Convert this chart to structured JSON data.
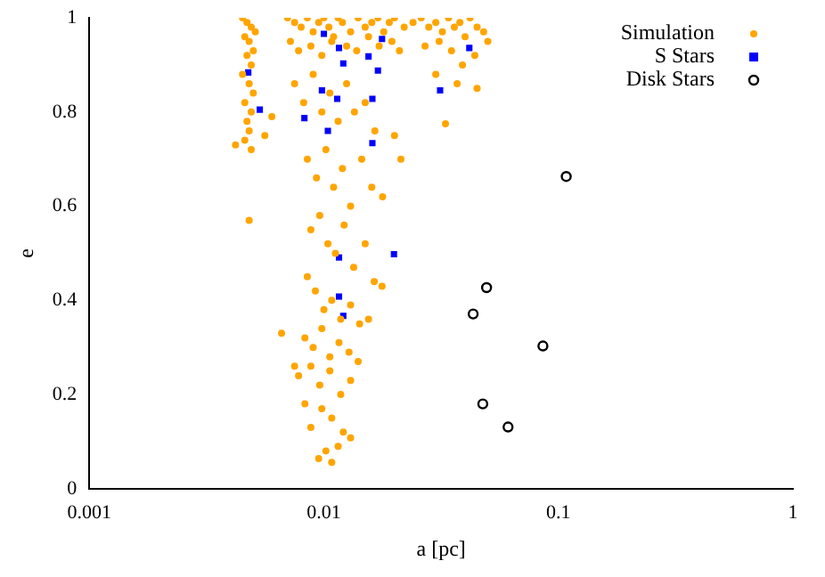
{
  "chart_data": {
    "type": "scatter",
    "xlabel": "a [pc]",
    "ylabel": "e",
    "log": "x",
    "grid": false,
    "legend": "top right",
    "xlim": [
      0.001,
      1
    ],
    "xticks": [
      0.001,
      0.01,
      0.1,
      1
    ],
    "ylim": [
      0,
      1
    ],
    "yticks": [
      0,
      0.2,
      0.4,
      0.6,
      0.8,
      1
    ],
    "series": [
      {
        "name": "Simulation",
        "color": "#ffa500",
        "marker": "circle",
        "x": [
          0.0045,
          0.0047,
          0.0049,
          0.0051,
          0.0046,
          0.0048,
          0.005,
          0.0047,
          0.0049,
          0.0045,
          0.0048,
          0.005,
          0.0046,
          0.0049,
          0.0047,
          0.0048,
          0.0046,
          0.0049,
          0.0042,
          0.0048,
          0.006,
          0.0056,
          0.007,
          0.0075,
          0.008,
          0.0085,
          0.009,
          0.0095,
          0.01,
          0.0105,
          0.011,
          0.0115,
          0.012,
          0.013,
          0.014,
          0.015,
          0.016,
          0.017,
          0.018,
          0.019,
          0.02,
          0.022,
          0.024,
          0.0072,
          0.0078,
          0.0088,
          0.0098,
          0.0108,
          0.0125,
          0.0138,
          0.0155,
          0.0172,
          0.0195,
          0.021,
          0.026,
          0.028,
          0.03,
          0.032,
          0.034,
          0.036,
          0.038,
          0.04,
          0.042,
          0.045,
          0.048,
          0.027,
          0.031,
          0.035,
          0.039,
          0.044,
          0.05,
          0.037,
          0.03,
          0.045,
          0.033,
          0.0213,
          0.02,
          0.0075,
          0.0082,
          0.009,
          0.0098,
          0.0106,
          0.0115,
          0.0125,
          0.0135,
          0.015,
          0.0165,
          0.0085,
          0.0093,
          0.0102,
          0.011,
          0.012,
          0.013,
          0.0145,
          0.016,
          0.0178,
          0.0088,
          0.0096,
          0.0104,
          0.0112,
          0.0122,
          0.0134,
          0.015,
          0.0164,
          0.0177,
          0.0085,
          0.0092,
          0.01,
          0.0108,
          0.0118,
          0.013,
          0.0142,
          0.0155,
          0.0083,
          0.009,
          0.0098,
          0.0106,
          0.0116,
          0.0128,
          0.014,
          0.0066,
          0.0078,
          0.0088,
          0.0096,
          0.0106,
          0.0118,
          0.013,
          0.0075,
          0.0088,
          0.0098,
          0.0108,
          0.0121,
          0.013,
          0.0083,
          0.0108,
          0.0095,
          0.0115,
          0.0102
        ],
        "values": [
          1,
          0.99,
          0.98,
          0.97,
          0.96,
          0.95,
          0.93,
          0.92,
          0.9,
          0.88,
          0.86,
          0.84,
          0.82,
          0.8,
          0.78,
          0.76,
          0.74,
          0.72,
          0.73,
          0.57,
          0.79,
          0.75,
          1,
          0.99,
          0.98,
          1,
          0.97,
          0.99,
          1,
          0.98,
          0.96,
          1,
          0.99,
          0.97,
          1,
          0.98,
          0.99,
          1,
          0.97,
          0.99,
          1,
          0.98,
          0.99,
          0.95,
          0.93,
          0.94,
          0.92,
          0.95,
          0.94,
          0.93,
          0.96,
          0.94,
          0.95,
          0.93,
          1,
          0.98,
          0.99,
          0.97,
          1,
          0.98,
          0.99,
          0.96,
          1,
          0.98,
          0.97,
          0.94,
          0.95,
          0.93,
          0.9,
          0.92,
          0.95,
          0.86,
          0.88,
          0.85,
          0.775,
          0.7,
          0.75,
          0.86,
          0.82,
          0.88,
          0.8,
          0.84,
          0.78,
          0.86,
          0.8,
          0.82,
          0.76,
          0.7,
          0.66,
          0.72,
          0.64,
          0.68,
          0.6,
          0.7,
          0.64,
          0.62,
          0.55,
          0.58,
          0.52,
          0.5,
          0.56,
          0.47,
          0.52,
          0.44,
          0.43,
          0.45,
          0.42,
          0.38,
          0.4,
          0.36,
          0.39,
          0.35,
          0.36,
          0.32,
          0.3,
          0.34,
          0.28,
          0.31,
          0.29,
          0.27,
          0.33,
          0.24,
          0.26,
          0.22,
          0.25,
          0.2,
          0.23,
          0.26,
          0.13,
          0.17,
          0.15,
          0.12,
          0.108,
          0.18,
          0.056,
          0.064,
          0.09,
          0.08
        ]
      },
      {
        "name": "S Stars",
        "color": "#0000ff",
        "marker": "square",
        "x": [
          0.00476,
          0.00533,
          0.00826,
          0.00981,
          0.01,
          0.0104,
          0.0114,
          0.0116,
          0.0121,
          0.0161,
          0.0161,
          0.0155,
          0.017,
          0.0177,
          0.0313,
          0.0417,
          0.0116,
          0.0199,
          0.0116,
          0.0121
        ],
        "values": [
          0.884,
          0.805,
          0.787,
          0.846,
          0.966,
          0.76,
          0.828,
          0.936,
          0.903,
          0.828,
          0.734,
          0.918,
          0.888,
          0.955,
          0.846,
          0.936,
          0.491,
          0.498,
          0.408,
          0.367
        ]
      },
      {
        "name": "Disk Stars",
        "color": "#000000",
        "marker": "circle_open",
        "x": [
          0.108,
          0.0494,
          0.0433,
          0.0859,
          0.0476,
          0.061
        ],
        "values": [
          0.663,
          0.427,
          0.371,
          0.303,
          0.18,
          0.131
        ]
      }
    ]
  }
}
